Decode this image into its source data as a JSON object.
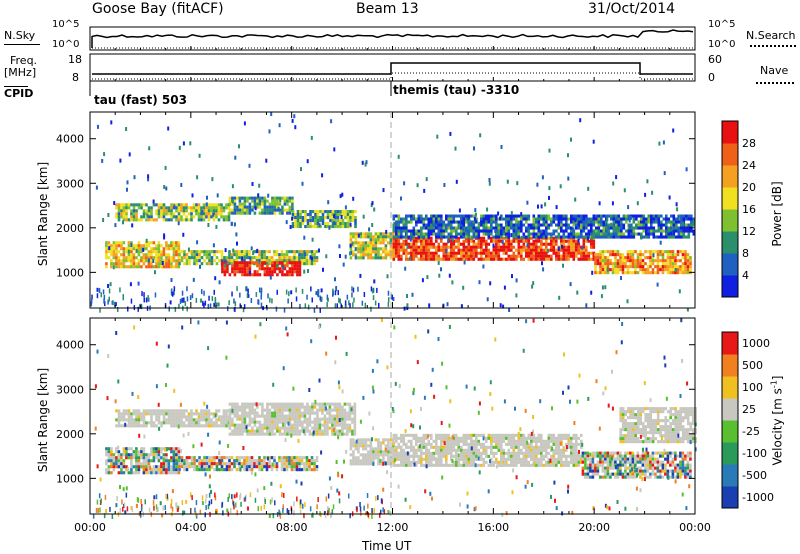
{
  "header": {
    "station": "Goose Bay (fitACF)",
    "beam": "Beam 13",
    "date": "31/Oct/2014"
  },
  "noise_panel": {
    "left_label": "N.Sky",
    "right_label": "N.Search",
    "left_ticks": [
      "10^5",
      "10^0"
    ],
    "right_ticks": [
      "10^5",
      "10^0"
    ]
  },
  "freq_panel": {
    "left_label_1": "Freq.",
    "left_label_2": "[MHz]",
    "right_label": "Nave",
    "left_ticks": [
      "18",
      "8"
    ],
    "right_ticks": [
      "60",
      "0"
    ]
  },
  "cpid": {
    "label": "CPID",
    "modes": [
      {
        "name": "tau (fast) 503",
        "start_hour": 0
      },
      {
        "name": "themis (tau) -3310",
        "start_hour": 12
      }
    ]
  },
  "chart_data": [
    {
      "type": "heatmap",
      "ylabel": "Slant Range [km]",
      "y_ticks": [
        1000,
        2000,
        3000,
        4000
      ],
      "ylim": [
        200,
        4600
      ],
      "xlim": [
        0,
        24
      ],
      "colorbar": {
        "label": "Power [dB]",
        "ticks": [
          4,
          8,
          12,
          16,
          20,
          24,
          28
        ],
        "colors": [
          "#1020e0",
          "#2060c0",
          "#2a8f6a",
          "#7fc030",
          "#f0e020",
          "#f5a020",
          "#f06018",
          "#e81010"
        ]
      },
      "regions": [
        {
          "t": [
            0.6,
            3.5
          ],
          "r": [
            1100,
            1700
          ],
          "level": 0.6
        },
        {
          "t": [
            3.5,
            9.0
          ],
          "r": [
            1200,
            1500
          ],
          "level": 0.45
        },
        {
          "t": [
            5.2,
            8.3
          ],
          "r": [
            950,
            1250
          ],
          "level": 1.0
        },
        {
          "t": [
            1.0,
            5.5
          ],
          "r": [
            2200,
            2550
          ],
          "level": 0.45
        },
        {
          "t": [
            5.5,
            8.0
          ],
          "r": [
            2350,
            2700
          ],
          "level": 0.35
        },
        {
          "t": [
            8.0,
            10.5
          ],
          "r": [
            2000,
            2400
          ],
          "level": 0.4
        },
        {
          "t": [
            10.3,
            12.0
          ],
          "r": [
            1300,
            1900
          ],
          "level": 0.5
        },
        {
          "t": [
            12.0,
            20.0
          ],
          "r": [
            1300,
            1800
          ],
          "level": 0.9
        },
        {
          "t": [
            20.0,
            23.8
          ],
          "r": [
            1000,
            1500
          ],
          "level": 0.7
        },
        {
          "t": [
            12.0,
            24.0
          ],
          "r": [
            1800,
            2300
          ],
          "level": 0.2
        }
      ]
    },
    {
      "type": "heatmap",
      "ylabel": "Slant Range [km]",
      "y_ticks": [
        1000,
        2000,
        3000,
        4000
      ],
      "ylim": [
        200,
        4600
      ],
      "xlim": [
        0,
        24
      ],
      "xlabel": "Time UT",
      "x_ticks": [
        "00:00",
        "04:00",
        "08:00",
        "12:00",
        "16:00",
        "20:00",
        "00:00"
      ],
      "colorbar": {
        "label": "Velocity [m s^-1]",
        "ticks": [
          "1000",
          "500",
          "100",
          "25",
          "-25",
          "-100",
          "-500",
          "-1000"
        ],
        "colors": [
          "#1a3fb0",
          "#2a7ab8",
          "#2a9a5a",
          "#58c030",
          "#c8c8c0",
          "#f0c020",
          "#f08020",
          "#e81818"
        ]
      },
      "regions": [
        {
          "t": [
            0.6,
            3.5
          ],
          "r": [
            1100,
            1700
          ],
          "class": "mixed"
        },
        {
          "t": [
            3.5,
            9.0
          ],
          "r": [
            1200,
            1500
          ],
          "class": "mixed"
        },
        {
          "t": [
            1.0,
            5.5
          ],
          "r": [
            2200,
            2550
          ],
          "class": "ground"
        },
        {
          "t": [
            5.5,
            10.5
          ],
          "r": [
            2000,
            2700
          ],
          "class": "ground"
        },
        {
          "t": [
            10.3,
            12.0
          ],
          "r": [
            1300,
            1900
          ],
          "class": "ground"
        },
        {
          "t": [
            12.0,
            19.5
          ],
          "r": [
            1300,
            2000
          ],
          "class": "ground"
        },
        {
          "t": [
            19.5,
            23.8
          ],
          "r": [
            1000,
            1600
          ],
          "class": "mixed"
        },
        {
          "t": [
            21.0,
            24.0
          ],
          "r": [
            1800,
            2600
          ],
          "class": "ground"
        }
      ]
    }
  ]
}
